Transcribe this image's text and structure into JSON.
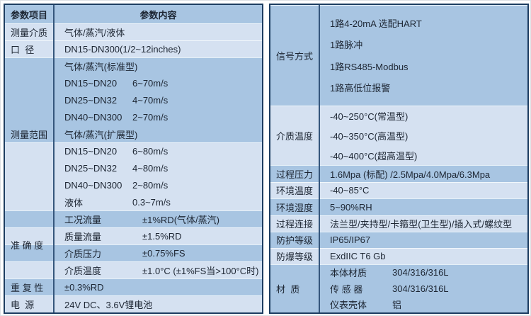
{
  "colors": {
    "band_dark": "#a8c5e2",
    "band_light": "#d5e1f1",
    "table_border": "#1d3d61",
    "column_divider": "#35567c",
    "row_separator": "#f3f7fc",
    "text": "#1d2633"
  },
  "left_table": {
    "header": {
      "param_item": "参数项目",
      "param_content": "参数内容"
    },
    "groups": [
      {
        "label": "测量介质",
        "subs": [
          {
            "shade": "light",
            "h": 24,
            "lines": [
              {
                "text": "气体/蒸汽/液体"
              }
            ]
          }
        ]
      },
      {
        "label": "口  径",
        "subs": [
          {
            "shade": "light",
            "h": 24,
            "lines": [
              {
                "text": "DN15-DN300(1/2~12inches)"
              }
            ]
          }
        ]
      },
      {
        "label": "测量范围",
        "subs": [
          {
            "shade": "dark",
            "h": 120,
            "lines": [
              {
                "text": "气体/蒸汽(标准型)"
              },
              {
                "name": "DN15~DN20",
                "value": "6~70m/s",
                "nw": 96
              },
              {
                "name": "DN25~DN32",
                "value": "4~70m/s",
                "nw": 96
              },
              {
                "name": "DN40~DN300",
                "value": "2~70m/s",
                "nw": 96
              },
              {
                "text": "气体/蒸汽(扩展型)"
              }
            ]
          },
          {
            "shade": "light",
            "h": 96,
            "lines": [
              {
                "name": "DN15~DN20",
                "value": "6~80m/s",
                "nw": 96
              },
              {
                "name": "DN25~DN32",
                "value": "4~80m/s",
                "nw": 96
              },
              {
                "name": "DN40~DN300",
                "value": "2~80m/s",
                "nw": 96
              },
              {
                "name": "液体",
                "value": "0.3~7m/s",
                "nw": 96
              }
            ]
          }
        ]
      },
      {
        "label": "准 确 度",
        "subs": [
          {
            "shade": "dark",
            "h": 24,
            "lines": [
              {
                "name": "工况流量",
                "value": "±1%RD(气体/蒸汽)",
                "nw": 110
              }
            ]
          },
          {
            "shade": "light",
            "h": 24,
            "lines": [
              {
                "name": "质量流量",
                "value": "±1.5%RD",
                "nw": 110
              }
            ]
          },
          {
            "shade": "dark",
            "h": 24,
            "lines": [
              {
                "name": "介质压力",
                "value": "±0.75%FS",
                "nw": 110
              }
            ]
          },
          {
            "shade": "light",
            "h": 24,
            "lines": [
              {
                "name": "介质温度",
                "value": "±1.0°C (±1%FS当>100°C时)",
                "nw": 110
              }
            ]
          }
        ]
      },
      {
        "label": "重 复 性",
        "subs": [
          {
            "shade": "dark",
            "h": 24,
            "lines": [
              {
                "text": "±0.3%RD"
              }
            ]
          }
        ]
      },
      {
        "label": "电  源",
        "subs": [
          {
            "shade": "light",
            "h": 24,
            "lines": [
              {
                "text": "24V DC、3.6V锂电池"
              }
            ]
          }
        ]
      }
    ]
  },
  "right_table": {
    "groups": [
      {
        "label": "信号方式",
        "subs": [
          {
            "shade": "dark",
            "h": 142,
            "pad": 10,
            "lines": [
              {
                "text": "1路4-20mA 选配HART"
              },
              {
                "text": "1路脉冲"
              },
              {
                "text": "1路RS485-Modbus"
              },
              {
                "text": "1路高低位报警"
              }
            ]
          }
        ]
      },
      {
        "label": "介质温度",
        "subs": [
          {
            "shade": "light",
            "h": 84,
            "lines": [
              {
                "text": "-40~250°C(常温型)"
              },
              {
                "text": "-40~350°C(高温型)"
              },
              {
                "text": "-40~400°C(超高温型)"
              }
            ]
          }
        ]
      },
      {
        "label": "过程压力",
        "subs": [
          {
            "shade": "dark",
            "h": 24,
            "lines": [
              {
                "text": "1.6Mpa (标配) /2.5Mpa/4.0Mpa/6.3Mpa"
              }
            ]
          }
        ]
      },
      {
        "label": "环境温度",
        "subs": [
          {
            "shade": "light",
            "h": 23,
            "lines": [
              {
                "text": "-40~85°C"
              }
            ]
          }
        ]
      },
      {
        "label": "环境湿度",
        "subs": [
          {
            "shade": "dark",
            "h": 24,
            "lines": [
              {
                "text": "5~90%RH"
              }
            ]
          }
        ]
      },
      {
        "label": "过程连接",
        "subs": [
          {
            "shade": "light",
            "h": 23,
            "lines": [
              {
                "text": "法兰型/夹持型/卡箍型(卫生型)/插入式/螺纹型"
              }
            ]
          }
        ]
      },
      {
        "label": "防护等级",
        "subs": [
          {
            "shade": "dark",
            "h": 23,
            "lines": [
              {
                "text": "IP65/IP67"
              }
            ]
          }
        ]
      },
      {
        "label": "防爆等级",
        "subs": [
          {
            "shade": "light",
            "h": 23,
            "lines": [
              {
                "text": "ExdIIC T6 Gb"
              }
            ]
          }
        ]
      },
      {
        "label": "材  质",
        "subs": [
          {
            "shade": "dark",
            "h": 68,
            "lines": [
              {
                "name": "本体材质",
                "value": "304/316/316L",
                "nw": 88
              },
              {
                "name": "传 感 器",
                "value": "304/316/316L",
                "nw": 88
              },
              {
                "name": "仪表壳体",
                "value": "铝",
                "nw": 88
              }
            ]
          }
        ]
      }
    ]
  }
}
